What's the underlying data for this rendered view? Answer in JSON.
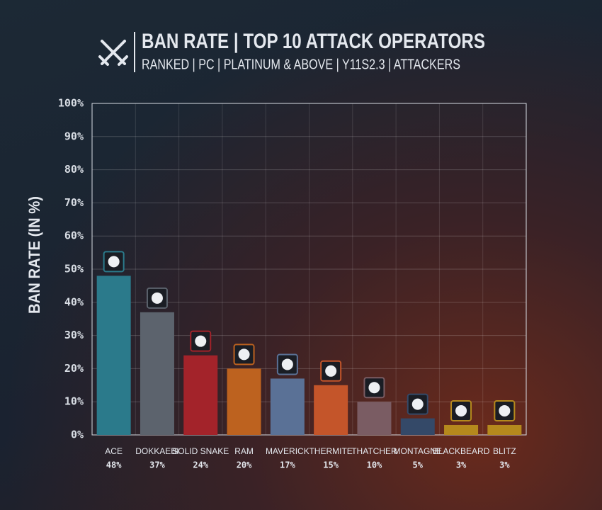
{
  "chart_data": {
    "type": "bar",
    "title": "BAN RATE | TOP 10 ATTACK OPERATORS",
    "subtitle": "RANKED | PC | PLATINUM & ABOVE | Y11S2.3 | ATTACKERS",
    "y_label": "BAN RATE (IN %)",
    "categories": [
      "ACE",
      "DOKKAEBI",
      "SOLID SNAKE",
      "RAM",
      "MAVERICK",
      "THERMITE",
      "THATCHER",
      "MONTAGNE",
      "BLACKBEARD",
      "BLITZ"
    ],
    "values": [
      48,
      37,
      24,
      20,
      17,
      15,
      10,
      5,
      3,
      3
    ],
    "value_labels": [
      "48%",
      "37%",
      "24%",
      "20%",
      "17%",
      "15%",
      "10%",
      "5%",
      "3%",
      "3%"
    ],
    "colors": [
      "#2b7a8b",
      "#5c636d",
      "#a3232a",
      "#bd621f",
      "#5a7196",
      "#c4552a",
      "#7a5c63",
      "#344968",
      "#b5891d",
      "#b5891d"
    ],
    "ylim": [
      0,
      100
    ],
    "yticks": [
      {
        "value": 0,
        "label": "0%"
      },
      {
        "value": 10,
        "label": "10%"
      },
      {
        "value": 20,
        "label": "20%"
      },
      {
        "value": 30,
        "label": "30%"
      },
      {
        "value": 40,
        "label": "40%"
      },
      {
        "value": 50,
        "label": "50%"
      },
      {
        "value": 60,
        "label": "60%"
      },
      {
        "value": 70,
        "label": "70%"
      },
      {
        "value": 80,
        "label": "80%"
      },
      {
        "value": 90,
        "label": "90%"
      },
      {
        "value": 100,
        "label": "100%"
      }
    ],
    "grid": true
  }
}
